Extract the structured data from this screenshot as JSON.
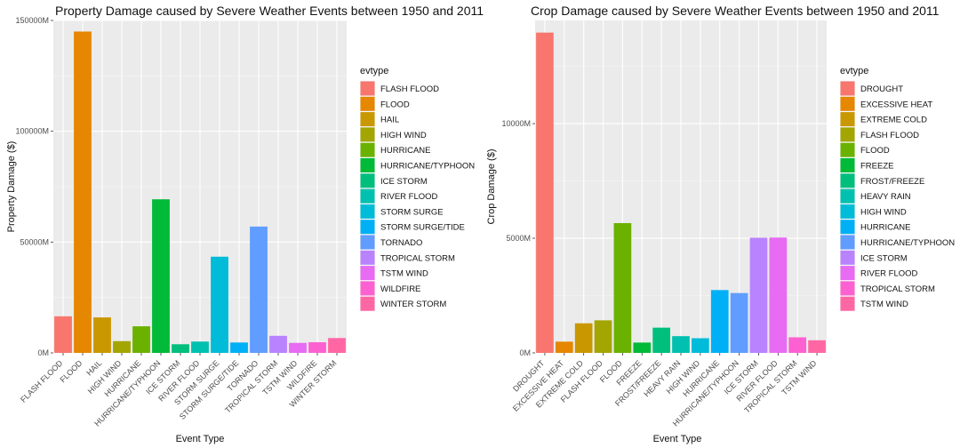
{
  "chart_data": [
    {
      "type": "bar",
      "title": "Property Damage caused by Severe Weather Events between 1950 and 2011",
      "xlabel": "Event Type",
      "ylabel": "Property Damage ($)",
      "categories": [
        "FLASH FLOOD",
        "FLOOD",
        "HAIL",
        "HIGH WIND",
        "HURRICANE",
        "HURRICANE/TYPHOON",
        "ICE STORM",
        "RIVER FLOOD",
        "STORM SURGE",
        "STORM SURGE/TIDE",
        "TORNADO",
        "TROPICAL STORM",
        "TSTM WIND",
        "WILDFIRE",
        "WINTER STORM"
      ],
      "values": [
        16500,
        145000,
        16000,
        5300,
        12000,
        69300,
        3900,
        5100,
        43400,
        4700,
        57000,
        7700,
        4500,
        4800,
        6700
      ],
      "unit": "M",
      "ylim": [
        0,
        150000
      ],
      "yticks": [
        0,
        50000,
        100000,
        150000
      ],
      "ytick_labels": [
        "0M",
        "50000M",
        "100000M",
        "150000M"
      ],
      "legend_title": "evtype",
      "legend_position": "right",
      "grid": true,
      "colors": [
        "#F8766D",
        "#E58700",
        "#C99800",
        "#A3A500",
        "#6BB100",
        "#00BA38",
        "#00BF7D",
        "#00C0AF",
        "#00BCD8",
        "#00B0F6",
        "#619CFF",
        "#B983FF",
        "#E76BF3",
        "#FD61D1",
        "#FF67A4"
      ]
    },
    {
      "type": "bar",
      "title": "Crop Damage caused by Severe Weather Events between 1950 and 2011",
      "xlabel": "Event Type",
      "ylabel": "Crop Damage ($)",
      "categories": [
        "DROUGHT",
        "EXCESSIVE HEAT",
        "EXTREME COLD",
        "FLASH FLOOD",
        "FLOOD",
        "FREEZE",
        "FROST/FREEZE",
        "HEAVY RAIN",
        "HIGH WIND",
        "HURRICANE",
        "HURRICANE/TYPHOON",
        "ICE STORM",
        "RIVER FLOOD",
        "TROPICAL STORM",
        "TSTM WIND"
      ],
      "values": [
        13970,
        490,
        1290,
        1420,
        5660,
        450,
        1100,
        730,
        640,
        2740,
        2610,
        5020,
        5030,
        680,
        550
      ],
      "unit": "M",
      "ylim": [
        0,
        14500
      ],
      "yticks": [
        0,
        5000,
        10000
      ],
      "ytick_labels": [
        "0M",
        "5000M",
        "10000M"
      ],
      "legend_title": "evtype",
      "legend_position": "right",
      "grid": true,
      "colors": [
        "#F8766D",
        "#E58700",
        "#C99800",
        "#A3A500",
        "#6BB100",
        "#00BA38",
        "#00BF7D",
        "#00C0AF",
        "#00BCD8",
        "#00B0F6",
        "#619CFF",
        "#B983FF",
        "#E76BF3",
        "#FD61D1",
        "#FF67A4"
      ]
    }
  ]
}
